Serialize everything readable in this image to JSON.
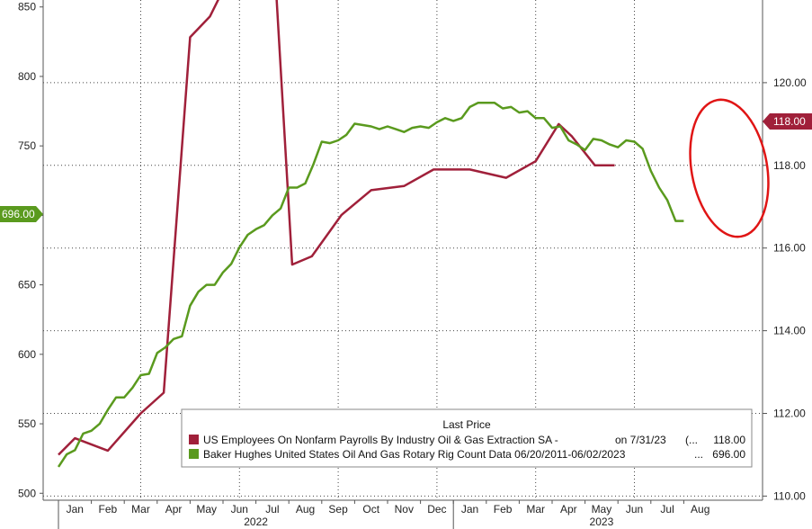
{
  "chart_data": {
    "type": "line",
    "grid": true,
    "legend_placement": "bottom-right",
    "legend_title": "Last Price",
    "months": [
      "Jan",
      "Feb",
      "Mar",
      "Apr",
      "May",
      "Jun",
      "Jul",
      "Aug",
      "Sep",
      "Oct",
      "Nov",
      "Dec",
      "Jan",
      "Feb",
      "Mar",
      "Apr",
      "May",
      "Jun",
      "Jul",
      "Aug"
    ],
    "years": [
      "2022",
      "2023"
    ],
    "left_axis": {
      "ticks": [
        500,
        550,
        600,
        650,
        700,
        750,
        800,
        850
      ],
      "range": [
        495,
        855
      ]
    },
    "right_axis": {
      "ticks": [
        "110.00",
        "112.00",
        "114.00",
        "116.00",
        "118.00",
        "120.00"
      ],
      "range": [
        109.9,
        122.0
      ]
    },
    "series": [
      {
        "name": "US Employees On Nonfarm Payrolls By Industry Oil & Gas Extraction SA -",
        "legend_mid": "on 7/31/23",
        "legend_trail": "(...",
        "last": "118.00",
        "color": "#a0203a",
        "axis": "right",
        "x": [
          0,
          0.5,
          1.5,
          2.5,
          3.2,
          4.0,
          4.6,
          5.1,
          5.5,
          6.1,
          6.6,
          7.1,
          7.7,
          8.6,
          9.5,
          10.5,
          11.4,
          12.5,
          13.6,
          14.5,
          15.2,
          15.6,
          16.3,
          16.9
        ],
        "y": [
          111.0,
          111.4,
          111.1,
          112.0,
          112.5,
          121.1,
          121.6,
          122.4,
          123.5,
          123.5,
          122.4,
          115.6,
          115.8,
          116.8,
          117.4,
          117.5,
          117.9,
          117.9,
          117.7,
          118.1,
          119.0,
          118.7,
          118.0,
          118.0
        ]
      },
      {
        "name": "Baker Hughes United States Oil And Gas Rotary Rig Count Data 06/20/2011-06/02/2023",
        "legend_trail": "...",
        "last": "696.00",
        "color": "#5a9a1e",
        "axis": "left",
        "x": [
          0,
          0.25,
          0.5,
          0.75,
          1.0,
          1.25,
          1.5,
          1.75,
          2.0,
          2.25,
          2.5,
          2.75,
          3.0,
          3.25,
          3.5,
          3.75,
          4.0,
          4.25,
          4.5,
          4.75,
          5.0,
          5.25,
          5.5,
          5.75,
          6.0,
          6.25,
          6.5,
          6.75,
          7.0,
          7.25,
          7.5,
          7.75,
          8.0,
          8.25,
          8.5,
          8.75,
          9.0,
          9.25,
          9.5,
          9.75,
          10.0,
          10.25,
          10.5,
          10.75,
          11.0,
          11.25,
          11.5,
          11.75,
          12.0,
          12.25,
          12.5,
          12.75,
          13.0,
          13.25,
          13.5,
          13.75,
          14.0,
          14.25,
          14.5,
          14.75,
          15.0,
          15.25,
          15.5,
          15.75,
          16.0,
          16.25,
          16.5,
          16.75,
          17.0,
          17.25,
          17.5,
          17.75,
          18.0,
          18.25,
          18.5,
          18.75,
          19.0
        ],
        "y": [
          519,
          528,
          531,
          543,
          545,
          550,
          560,
          569,
          569,
          576,
          585,
          586,
          601,
          605,
          611,
          613,
          635,
          645,
          650,
          650,
          659,
          665,
          677,
          686,
          690,
          693,
          700,
          705,
          720,
          720,
          723,
          737,
          753,
          752,
          754,
          758,
          766,
          765,
          764,
          762,
          764,
          762,
          760,
          763,
          764,
          763,
          767,
          770,
          768,
          770,
          778,
          781,
          781,
          781,
          777,
          778,
          774,
          775,
          770,
          770,
          763,
          764,
          754,
          751,
          747,
          755,
          754,
          751,
          749,
          754,
          753,
          748,
          732,
          720,
          711,
          696,
          696
        ]
      }
    ]
  }
}
